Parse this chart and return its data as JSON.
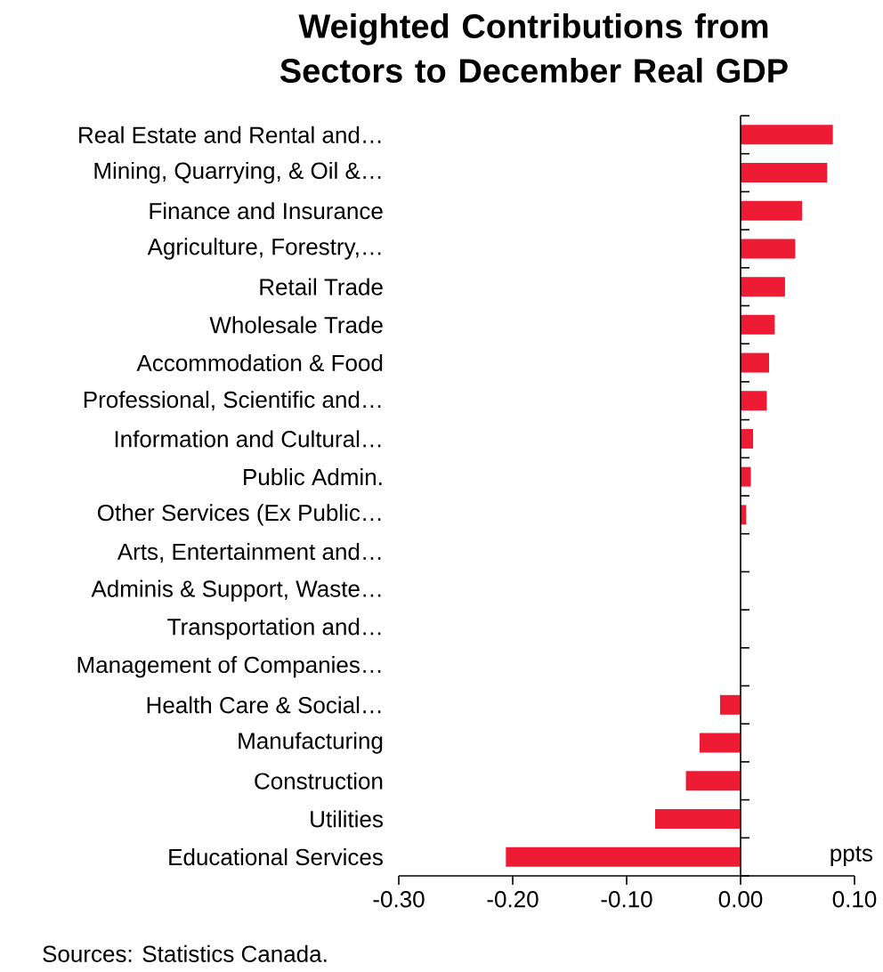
{
  "chart_data": {
    "type": "bar",
    "orientation": "horizontal",
    "title": "Weighted Contributions from Sectors to December Real GDP",
    "categories": [
      "Real Estate and Rental and…",
      "Mining, Quarrying, & Oil &…",
      "Finance and Insurance",
      "Agriculture, Forestry,…",
      "Retail Trade",
      "Wholesale Trade",
      "Accommodation & Food",
      "Professional, Scientific and…",
      "Information and Cultural…",
      "Public Admin.",
      "Other Services (Ex Public…",
      "Arts, Entertainment and…",
      "Adminis & Support, Waste…",
      "Transportation and…",
      "Management of Companies…",
      "Health Care & Social…",
      "Manufacturing",
      "Construction",
      "Utilities",
      "Educational Services"
    ],
    "values": [
      0.081,
      0.076,
      0.054,
      0.048,
      0.039,
      0.03,
      0.025,
      0.023,
      0.011,
      0.009,
      0.005,
      0,
      0,
      0,
      0,
      -0.018,
      -0.036,
      -0.048,
      -0.075,
      -0.206
    ],
    "color": "#ed1b34",
    "xlim": [
      -0.3,
      0.1
    ],
    "xticks": [
      {
        "value": -0.3,
        "label": "-0.30"
      },
      {
        "value": -0.2,
        "label": "-0.20"
      },
      {
        "value": -0.1,
        "label": "-0.10"
      },
      {
        "value": 0,
        "label": "0.00"
      },
      {
        "value": 0.1,
        "label": "0.10"
      }
    ],
    "annotations": [
      "ppts",
      "Sources: Statistics Canada."
    ]
  }
}
